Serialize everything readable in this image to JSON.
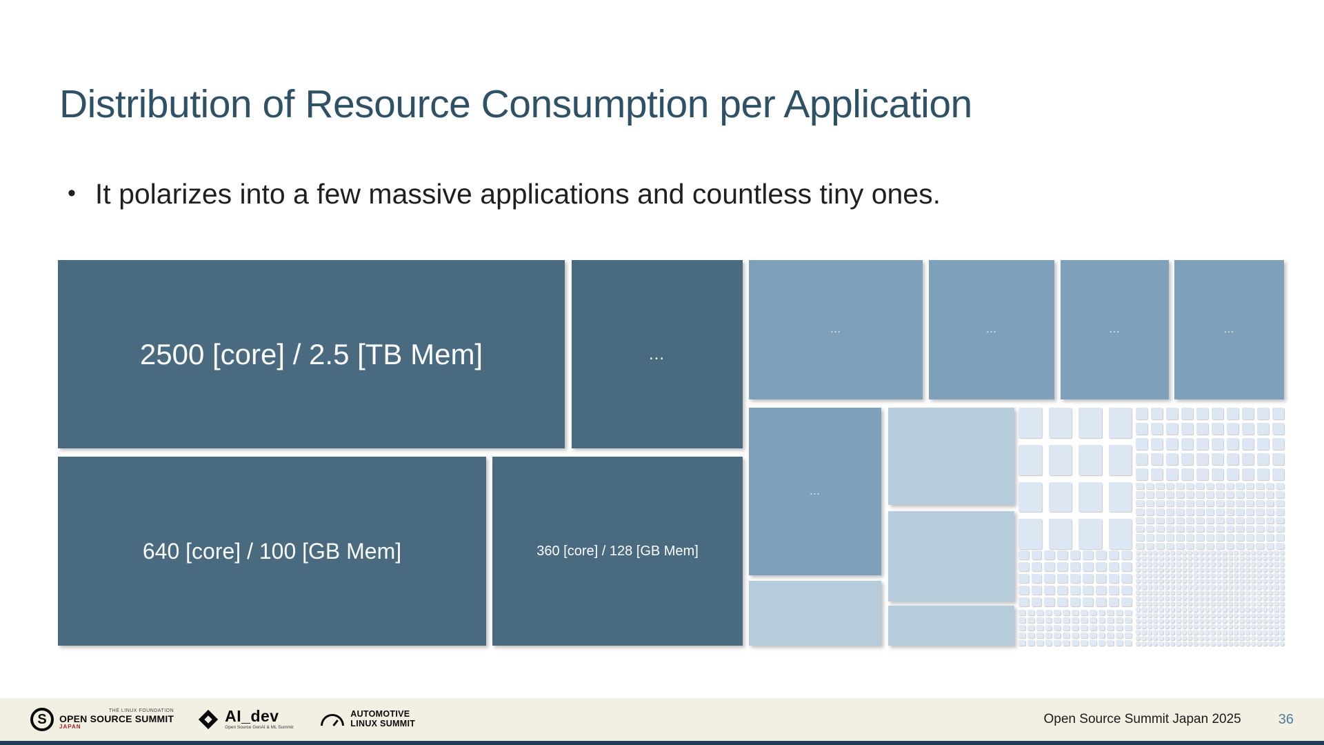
{
  "slide": {
    "title": "Distribution of Resource Consumption per Application",
    "bullet_marker": "•",
    "bullet": "It polarizes into a few massive applications and countless tiny ones."
  },
  "chart_data": {
    "type": "treemap",
    "title": "Distribution of Resource Consumption per Application",
    "legend": "none",
    "palette": {
      "dark": "#4a6a80",
      "medium": "#7fa0ba",
      "light": "#b7ccdb",
      "tiny_cell": "#dce7f3"
    },
    "blocks": [
      {
        "label": "2500 [core] / 2.5 [TB Mem]",
        "cores": 2500,
        "memory": "2.5 TB",
        "tier": "dark"
      },
      {
        "label": "…",
        "tier": "dark"
      },
      {
        "label": "640 [core] / 100 [GB Mem]",
        "cores": 640,
        "memory": "100 GB",
        "tier": "dark"
      },
      {
        "label": "360 [core] / 128 [GB Mem]",
        "cores": 360,
        "memory": "128 GB",
        "tier": "dark"
      },
      {
        "label": "…",
        "tier": "medium"
      },
      {
        "label": "…",
        "tier": "medium"
      },
      {
        "label": "…",
        "tier": "medium"
      },
      {
        "label": "…",
        "tier": "medium"
      },
      {
        "label": "…",
        "tier": "medium"
      },
      {
        "label": "",
        "tier": "light"
      },
      {
        "label": "",
        "tier": "light"
      },
      {
        "label": "",
        "tier": "light"
      },
      {
        "label": "",
        "tier": "light"
      }
    ],
    "grids": {
      "g1": {
        "cols": 4,
        "rows": 4,
        "gap": 10,
        "color": "#dce7f3"
      },
      "g2": {
        "cols": 10,
        "rows": 5,
        "gap": 5,
        "color": "#dce7f3"
      },
      "g3": {
        "cols": 15,
        "rows": 8,
        "gap": 3,
        "color": "#dfe9f4"
      },
      "g4": {
        "cols": 9,
        "rows": 5,
        "gap": 4,
        "color": "#dce7f3"
      },
      "g5": {
        "cols": 13,
        "rows": 5,
        "gap": 3,
        "color": "#dfe9f4"
      },
      "g6": {
        "cols": 26,
        "rows": 17,
        "gap": 2,
        "color": "#e2ebf4"
      }
    }
  },
  "footer": {
    "conference": "Open Source Summit Japan 2025",
    "page_number": "36",
    "logos": {
      "oss": {
        "mark": "S",
        "top": "THE LINUX FOUNDATION",
        "main": "OPEN SOURCE SUMMIT",
        "sub": "JAPAN"
      },
      "aidev": {
        "main": "AI_dev",
        "sub": "Open Source GenAI & ML Summit"
      },
      "als": {
        "line1": "AUTOMOTIVE",
        "line2": "LINUX SUMMIT"
      }
    }
  }
}
